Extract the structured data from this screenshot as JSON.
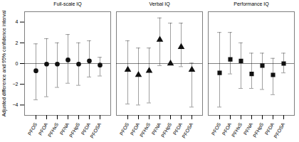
{
  "chart_data": {
    "type": "errorbar",
    "categories": [
      "PFOS",
      "PFOA",
      "PFHxS",
      "PFNA",
      "PFHpS",
      "PFDA",
      "PFOSA"
    ],
    "series": [
      {
        "name": "Full-scale IQ",
        "marker": "circle",
        "color": "#111111",
        "values": [
          -0.7,
          -0.05,
          -0.05,
          0.35,
          -0.05,
          0.25,
          -0.15
        ],
        "ci_lo": [
          -3.5,
          -3.2,
          -2.3,
          -1.9,
          -2.1,
          -1.3,
          -1.2
        ],
        "ci_hi": [
          1.9,
          2.4,
          2.0,
          2.8,
          2.0,
          2.2,
          0.6
        ]
      },
      {
        "name": "Verbal IQ",
        "marker": "triangle",
        "color": "#111111",
        "values": [
          -0.6,
          -1.1,
          -0.7,
          2.3,
          0.0,
          1.6,
          -0.6
        ],
        "ci_lo": [
          -3.9,
          -4.0,
          -3.8,
          -0.2,
          -0.1,
          -0.3,
          -4.2
        ],
        "ci_hi": [
          2.2,
          1.5,
          1.5,
          4.4,
          3.9,
          3.9,
          0.05
        ]
      },
      {
        "name": "Performance IQ",
        "marker": "square",
        "color": "#111111",
        "values": [
          -0.9,
          0.4,
          0.25,
          -1.0,
          -0.2,
          -1.1,
          0.0
        ],
        "ci_lo": [
          -4.2,
          -1.0,
          -2.4,
          -2.4,
          -2.5,
          -3.0,
          -0.9
        ],
        "ci_hi": [
          3.0,
          3.0,
          2.0,
          1.0,
          1.0,
          0.5,
          1.0
        ]
      }
    ],
    "ylabel": "Adjusted difference and 95% confidence interval",
    "ylim": [
      -5,
      5
    ],
    "yticks": [
      -4,
      -2,
      0,
      2,
      4
    ]
  }
}
